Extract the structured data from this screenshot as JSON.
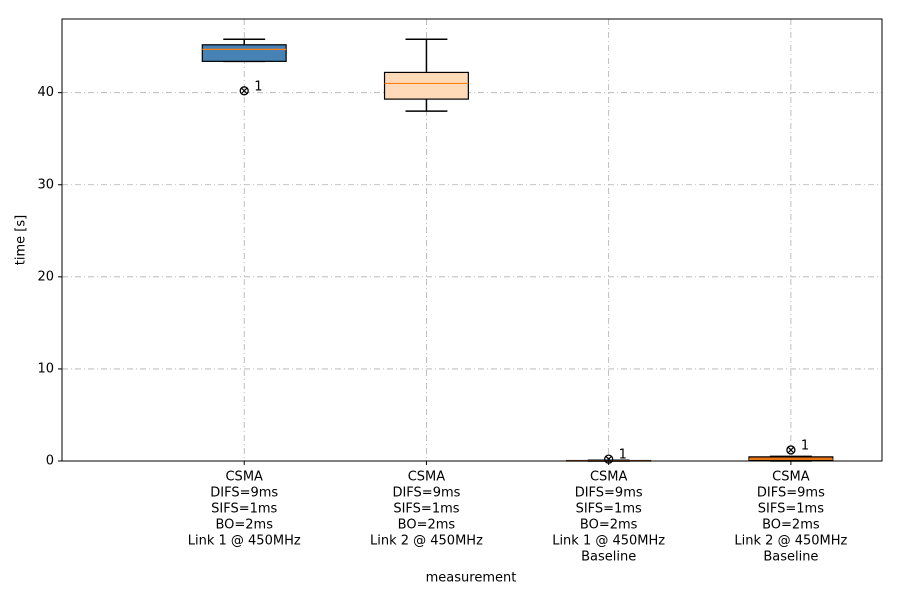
{
  "chart_data": {
    "type": "box",
    "xlabel": "measurement",
    "ylabel": "time [s]",
    "ylim": [
      0,
      48.0
    ],
    "yticks": [
      0,
      10,
      20,
      30,
      40
    ],
    "grid": true,
    "categories": [
      [
        "CSMA",
        "DIFS=9ms",
        "SIFS=1ms",
        "BO=2ms",
        "Link 1 @ 450MHz"
      ],
      [
        "CSMA",
        "DIFS=9ms",
        "SIFS=1ms",
        "BO=2ms",
        "Link 2 @ 450MHz"
      ],
      [
        "CSMA",
        "DIFS=9ms",
        "SIFS=1ms",
        "BO=2ms",
        "Link 1 @ 450MHz",
        "Baseline"
      ],
      [
        "CSMA",
        "DIFS=9ms",
        "SIFS=1ms",
        "BO=2ms",
        "Link 2 @ 450MHz",
        "Baseline"
      ]
    ],
    "boxes": [
      {
        "color": "#4682b4",
        "whisker_low": 43.4,
        "q1": 43.4,
        "median": 44.7,
        "q3": 45.2,
        "whisker_high": 45.8,
        "outliers": [
          40.2
        ],
        "outlier_labels": [
          "1"
        ]
      },
      {
        "color": "#ffdab9",
        "whisker_low": 38.0,
        "q1": 39.3,
        "median": 41.0,
        "q3": 42.2,
        "whisker_high": 45.8,
        "outliers": [],
        "outlier_labels": []
      },
      {
        "color": "#f4a460",
        "whisker_low": 0.0,
        "q1": 0.0,
        "median": 0.02,
        "q3": 0.05,
        "whisker_high": 0.08,
        "outliers": [
          0.2
        ],
        "outlier_labels": [
          "1"
        ]
      },
      {
        "color": "#d2691e",
        "whisker_low": 0.0,
        "q1": 0.05,
        "median": 0.2,
        "q3": 0.45,
        "whisker_high": 0.5,
        "outliers": [
          1.2
        ],
        "outlier_labels": [
          "1"
        ]
      }
    ],
    "median_color": "#ff7f0e"
  }
}
